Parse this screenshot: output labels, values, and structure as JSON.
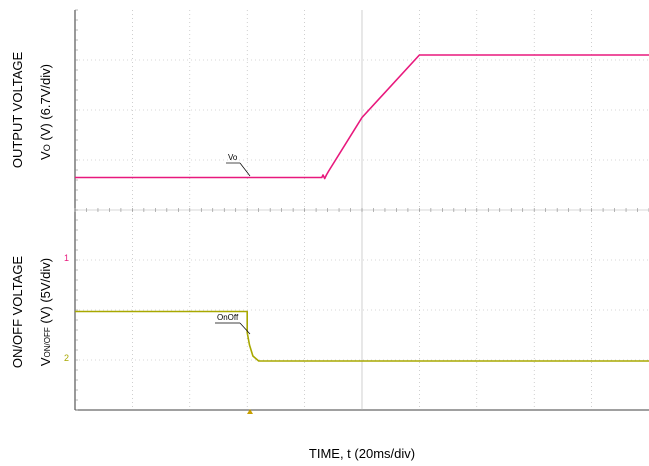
{
  "chart_data": {
    "type": "line",
    "xlabel": "TIME, t (20ms/div)",
    "x_divisions": 10,
    "upper_panel": {
      "ylabel_line1": "OUTPUT VOLTAGE",
      "ylabel_line2": "V",
      "ylabel_sub": "O",
      "ylabel_tail": " (V) (6.7V/div)",
      "series": [
        {
          "name": "Vo",
          "color": "#e8197d",
          "x_div": [
            0,
            4.3,
            4.32,
            4.35,
            4.38,
            4.42,
            5.0,
            6.0,
            10.0
          ],
          "y_div": [
            0.65,
            0.65,
            0.7,
            0.63,
            0.7,
            0.78,
            1.85,
            3.1,
            3.1
          ]
        }
      ]
    },
    "lower_panel": {
      "ylabel_line1": "ON/OFF VOLTAGE",
      "ylabel_line2": "V",
      "ylabel_sub": "ON/OFF",
      "ylabel_tail": " (V) (5V/div)",
      "series": [
        {
          "name": "OnOff",
          "color": "#a8a800",
          "x_div": [
            0,
            3.0,
            3.0,
            3.04,
            3.1,
            3.2,
            10.0
          ],
          "y_div": [
            1.97,
            1.97,
            1.55,
            1.3,
            1.08,
            0.98,
            0.98
          ]
        }
      ]
    },
    "grid": true
  },
  "ch1_marker": "1",
  "ch2_marker": "2"
}
